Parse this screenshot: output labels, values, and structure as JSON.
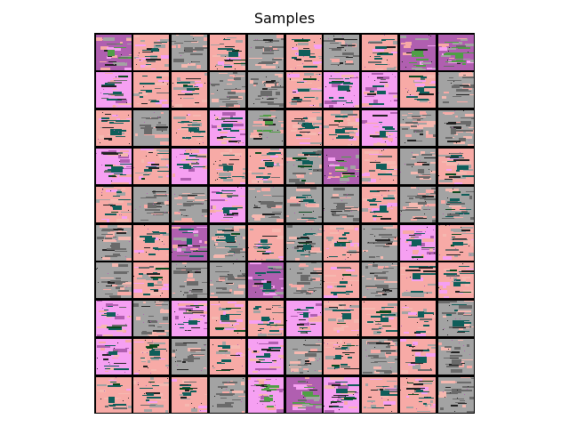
{
  "title": "Samples",
  "grid": {
    "rows": 10,
    "cols": 10,
    "palette": {
      "pink": "#f7aaa6",
      "light_pink": "#f5b8b0",
      "magenta": "#f6a0f2",
      "purple": "#b05fb0",
      "gray": "#a3a3a3",
      "dark_gray": "#6a6a6a",
      "teal": "#0f5e5a",
      "green": "#4f9f45",
      "dark_green": "#0a4a1e",
      "black": "#222222"
    },
    "tile_backgrounds": [
      [
        "purple",
        "pink",
        "gray",
        "pink",
        "gray",
        "pink",
        "gray",
        "pink",
        "purple",
        "purple"
      ],
      [
        "magenta",
        "pink",
        "pink",
        "gray",
        "gray",
        "pink",
        "magenta",
        "magenta",
        "pink",
        "gray"
      ],
      [
        "pink",
        "gray",
        "pink",
        "magenta",
        "gray",
        "pink",
        "pink",
        "magenta",
        "gray",
        "gray"
      ],
      [
        "magenta",
        "pink",
        "magenta",
        "pink",
        "pink",
        "gray",
        "purple",
        "pink",
        "gray",
        "pink"
      ],
      [
        "pink",
        "gray",
        "gray",
        "magenta",
        "gray",
        "gray",
        "gray",
        "pink",
        "gray",
        "gray"
      ],
      [
        "gray",
        "pink",
        "purple",
        "gray",
        "pink",
        "gray",
        "pink",
        "gray",
        "magenta",
        "pink"
      ],
      [
        "gray",
        "pink",
        "gray",
        "gray",
        "purple",
        "gray",
        "pink",
        "gray",
        "pink",
        "pink"
      ],
      [
        "magenta",
        "gray",
        "magenta",
        "pink",
        "pink",
        "magenta",
        "pink",
        "pink",
        "pink",
        "gray"
      ],
      [
        "magenta",
        "pink",
        "gray",
        "pink",
        "magenta",
        "gray",
        "pink",
        "gray",
        "pink",
        "gray"
      ],
      [
        "pink",
        "pink",
        "pink",
        "gray",
        "magenta",
        "purple",
        "magenta",
        "pink",
        "pink",
        "gray"
      ]
    ],
    "tile_blob_colors": [
      [
        "green",
        "teal",
        "dark_gray",
        "teal",
        "dark_gray",
        "teal",
        "dark_gray",
        "teal",
        "green",
        "green"
      ],
      [
        "teal",
        "teal",
        "teal",
        "dark_gray",
        "dark_gray",
        "teal",
        "teal",
        "teal",
        "teal",
        "dark_gray"
      ],
      [
        "teal",
        "dark_gray",
        "teal",
        "teal",
        "green",
        "teal",
        "teal",
        "teal",
        "dark_gray",
        "dark_gray"
      ],
      [
        "teal",
        "teal",
        "teal",
        "teal",
        "teal",
        "teal",
        "green",
        "teal",
        "dark_gray",
        "teal"
      ],
      [
        "teal",
        "dark_gray",
        "dark_gray",
        "teal",
        "dark_gray",
        "teal",
        "dark_gray",
        "teal",
        "dark_gray",
        "teal"
      ],
      [
        "dark_gray",
        "teal",
        "teal",
        "teal",
        "teal",
        "teal",
        "teal",
        "dark_gray",
        "teal",
        "teal"
      ],
      [
        "dark_gray",
        "teal",
        "dark_gray",
        "dark_gray",
        "teal",
        "dark_gray",
        "teal",
        "dark_gray",
        "teal",
        "teal"
      ],
      [
        "teal",
        "dark_gray",
        "teal",
        "teal",
        "teal",
        "teal",
        "teal",
        "teal",
        "teal",
        "teal"
      ],
      [
        "teal",
        "teal",
        "dark_gray",
        "teal",
        "teal",
        "dark_gray",
        "teal",
        "dark_gray",
        "teal",
        "dark_gray"
      ],
      [
        "teal",
        "teal",
        "teal",
        "dark_gray",
        "green",
        "green",
        "teal",
        "teal",
        "teal",
        "dark_gray"
      ]
    ]
  }
}
